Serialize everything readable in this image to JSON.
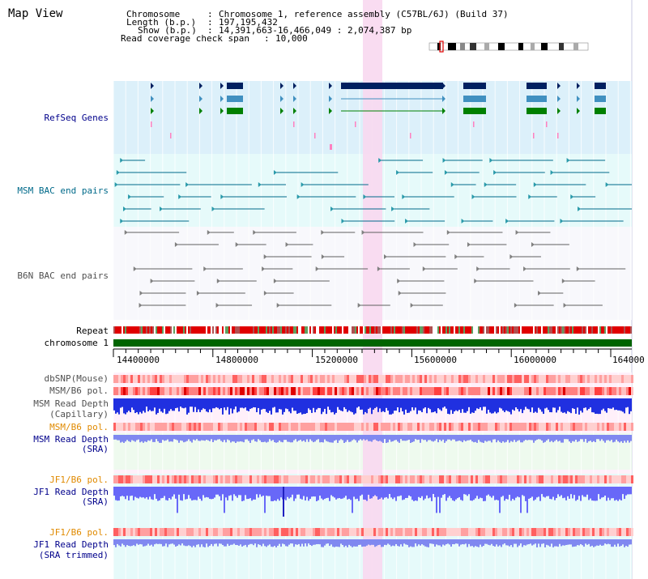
{
  "view_title": "Map View",
  "info": {
    "chromosome_key": "Chromosome",
    "chromosome_val": "Chromosome 1, reference assembly (C57BL/6J) (Build 37)",
    "length_key": "Length (b.p.)",
    "length_val": "197,195,432",
    "show_key": "Show (b.p.)",
    "show_val": "14,391,663-16,466,049 : 2,074,387 bp",
    "span_key": "Read coverage check span",
    "span_val": "10,000"
  },
  "tracks": {
    "refseq": "RefSeq Genes",
    "msm_bac": "MSM BAC end pairs",
    "b6n_bac": "B6N BAC end pairs",
    "repeat": "Repeat",
    "chromosome": "chromosome 1",
    "dbsnp": "dbSNP(Mouse)",
    "msm_b6_pol_1": "MSM/B6 pol.",
    "msm_read_depth_cap_1": "MSM Read Depth",
    "msm_read_depth_cap_2": "(Capillary)",
    "msm_b6_pol_2": "MSM/B6 pol.",
    "msm_read_depth_sra_1": "MSM Read Depth",
    "msm_read_depth_sra_2": "(SRA)",
    "jf1_b6_pol_1": "JF1/B6 pol.",
    "jf1_read_depth_sra_1": "JF1 Read Depth",
    "jf1_read_depth_sra_2": "(SRA)",
    "jf1_b6_pol_2": "JF1/B6 pol.",
    "jf1_read_depth_trim_1": "JF1 Read Depth",
    "jf1_read_depth_trim_2": "(SRA trimmed)"
  },
  "axis_ticks": [
    "14400000",
    "14800000",
    "15200000",
    "15600000",
    "16000000",
    "164000"
  ],
  "colors": {
    "refseq_bg": "#dcf0fa",
    "msm_bg": "#e6fafa",
    "b6n_bg": "#f8f8fc",
    "highlight": "#f8d8f0",
    "chromosome_bar": "#006400",
    "label_blue": "#00008b",
    "label_teal": "#006a8a",
    "label_orange": "#e08a00",
    "label_gray": "#505050"
  }
}
